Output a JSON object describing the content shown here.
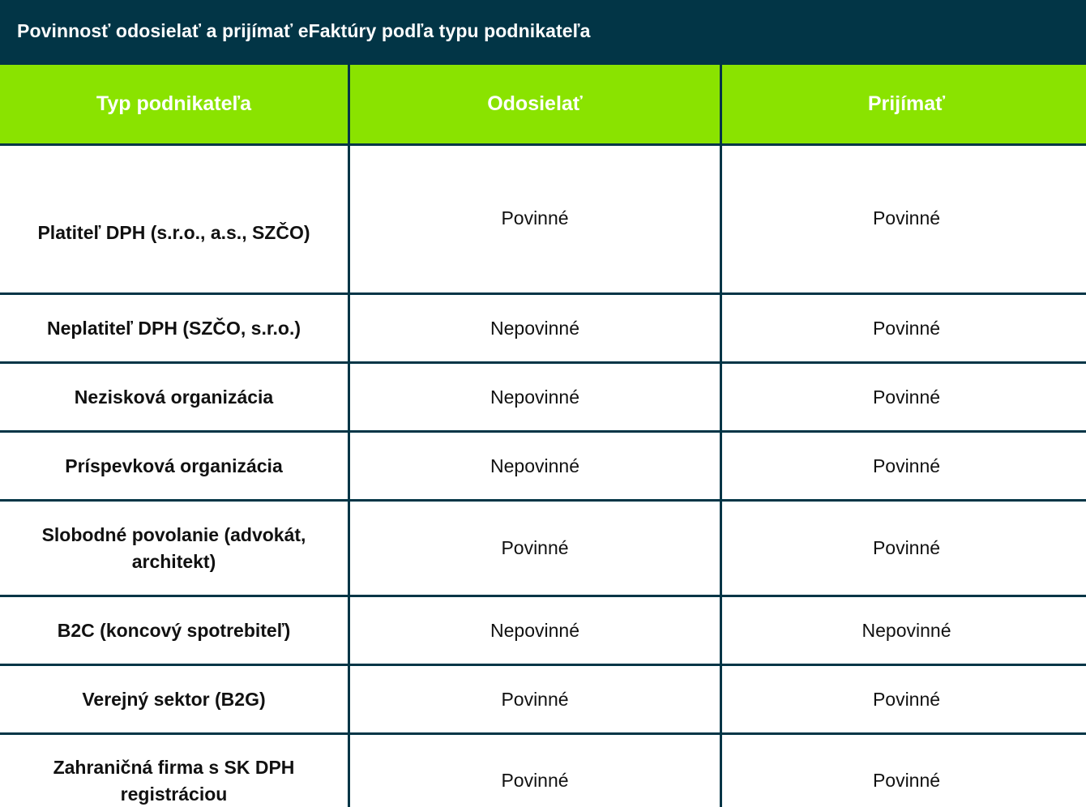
{
  "title": "Povinnosť odosielať a prijímať eFaktúry podľa typu podnikateľa",
  "columns": [
    "Typ podnikateľa",
    "Odosielať",
    "Prijímať"
  ],
  "rows": [
    {
      "type": "Platiteľ DPH (s.r.o., a.s., SZČO)",
      "send": "Povinné",
      "receive": "Povinné"
    },
    {
      "type": "Neplatiteľ DPH (SZČO, s.r.o.)",
      "send": "Nepovinné",
      "receive": "Povinné"
    },
    {
      "type": "Nezisková organizácia",
      "send": "Nepovinné",
      "receive": "Povinné"
    },
    {
      "type": "Príspevková organizácia",
      "send": "Nepovinné",
      "receive": "Povinné"
    },
    {
      "type": "Slobodné povolanie (advokát, architekt)",
      "send": "Povinné",
      "receive": "Povinné"
    },
    {
      "type": "B2C (koncový spotrebiteľ)",
      "send": "Nepovinné",
      "receive": "Nepovinné"
    },
    {
      "type": "Verejný sektor (B2G)",
      "send": "Povinné",
      "receive": "Povinné"
    },
    {
      "type": "Zahraničná firma s SK DPH registráciou",
      "send": "Povinné",
      "receive": "Povinné"
    }
  ],
  "colors": {
    "title_bar": "#023546",
    "header_bg": "#8ae300",
    "border": "#023546"
  }
}
